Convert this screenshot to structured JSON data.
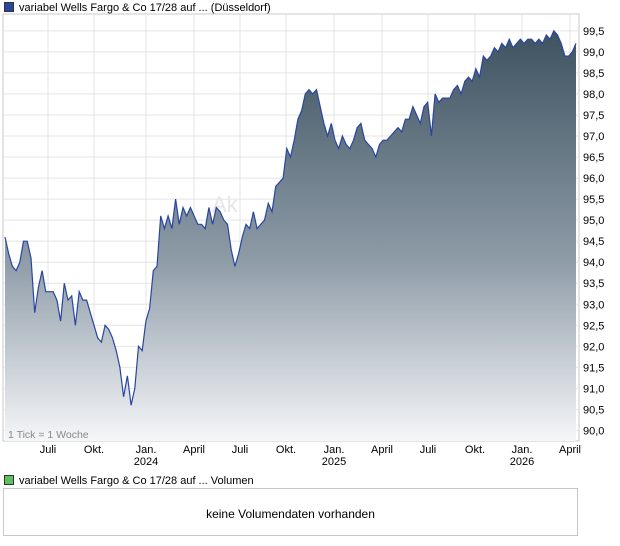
{
  "legend": {
    "price_label": "variabel Wells Fargo & Co 17/28 auf ... (Düsseldorf)",
    "price_color": "#2846a0",
    "volume_label": "variabel Wells Fargo & Co 17/28 auf ... Volumen",
    "volume_color": "#5cc15c"
  },
  "tick_note": "1 Tick = 1 Woche",
  "watermark": "Ak",
  "volume": {
    "message": "keine Volumendaten vorhanden"
  },
  "chart_data": {
    "type": "area",
    "y_axis_side": "right",
    "ylim": [
      89.75,
      99.9
    ],
    "grid": true,
    "y_ticks": [
      "90,0",
      "90,5",
      "91,0",
      "91,5",
      "92,0",
      "92,5",
      "93,0",
      "93,5",
      "94,0",
      "94,5",
      "95,0",
      "95,5",
      "96,0",
      "96,5",
      "97,0",
      "97,5",
      "98,0",
      "98,5",
      "99,0",
      "99,5"
    ],
    "x_tick_labels": [
      {
        "label": "Juli",
        "year": ""
      },
      {
        "label": "Okt.",
        "year": ""
      },
      {
        "label": "Jan.",
        "year": "2024"
      },
      {
        "label": "April",
        "year": ""
      },
      {
        "label": "Juli",
        "year": ""
      },
      {
        "label": "Okt.",
        "year": ""
      },
      {
        "label": "Jan.",
        "year": "2025"
      },
      {
        "label": "April",
        "year": ""
      },
      {
        "label": "Juli",
        "year": ""
      },
      {
        "label": "Okt.",
        "year": ""
      },
      {
        "label": "Jan.",
        "year": "2026"
      },
      {
        "label": "April",
        "year": ""
      }
    ],
    "series": [
      {
        "line_color": "#2846a0",
        "values": [
          94.6,
          94.2,
          93.9,
          93.8,
          94.0,
          94.5,
          94.5,
          94.1,
          92.8,
          93.4,
          93.8,
          93.3,
          93.3,
          93.3,
          93.1,
          92.6,
          93.5,
          93.1,
          93.2,
          92.5,
          93.3,
          93.1,
          93.1,
          92.8,
          92.5,
          92.2,
          92.1,
          92.5,
          92.4,
          92.2,
          91.9,
          91.5,
          90.8,
          91.3,
          90.6,
          91.0,
          92.0,
          91.9,
          92.6,
          92.9,
          93.8,
          93.9,
          95.1,
          94.8,
          95.1,
          94.8,
          95.5,
          94.9,
          95.3,
          95.1,
          95.3,
          95.1,
          94.9,
          94.9,
          94.8,
          95.3,
          94.9,
          95.3,
          95.2,
          95.0,
          94.9,
          94.3,
          93.9,
          94.2,
          94.6,
          94.9,
          94.8,
          95.2,
          94.8,
          94.9,
          95.0,
          95.4,
          95.2,
          95.8,
          95.9,
          96.0,
          96.7,
          96.5,
          96.9,
          97.4,
          97.6,
          98.0,
          98.1,
          98.0,
          98.1,
          97.7,
          97.3,
          97.0,
          97.3,
          96.9,
          96.7,
          97.0,
          96.8,
          96.7,
          96.9,
          97.2,
          97.3,
          96.9,
          96.8,
          96.7,
          96.5,
          96.8,
          96.9,
          96.9,
          97.0,
          97.1,
          97.2,
          97.1,
          97.4,
          97.4,
          97.7,
          97.5,
          97.3,
          97.7,
          97.8,
          97.0,
          98.0,
          97.8,
          97.9,
          97.9,
          97.9,
          98.1,
          98.2,
          98.0,
          98.3,
          98.4,
          98.3,
          98.6,
          98.4,
          98.9,
          98.8,
          98.9,
          99.1,
          99.0,
          99.2,
          99.1,
          99.3,
          99.1,
          99.2,
          99.3,
          99.2,
          99.3,
          99.3,
          99.2,
          99.3,
          99.2,
          99.4,
          99.3,
          99.5,
          99.4,
          99.2,
          98.9,
          98.9,
          99.0,
          99.2
        ]
      }
    ]
  }
}
